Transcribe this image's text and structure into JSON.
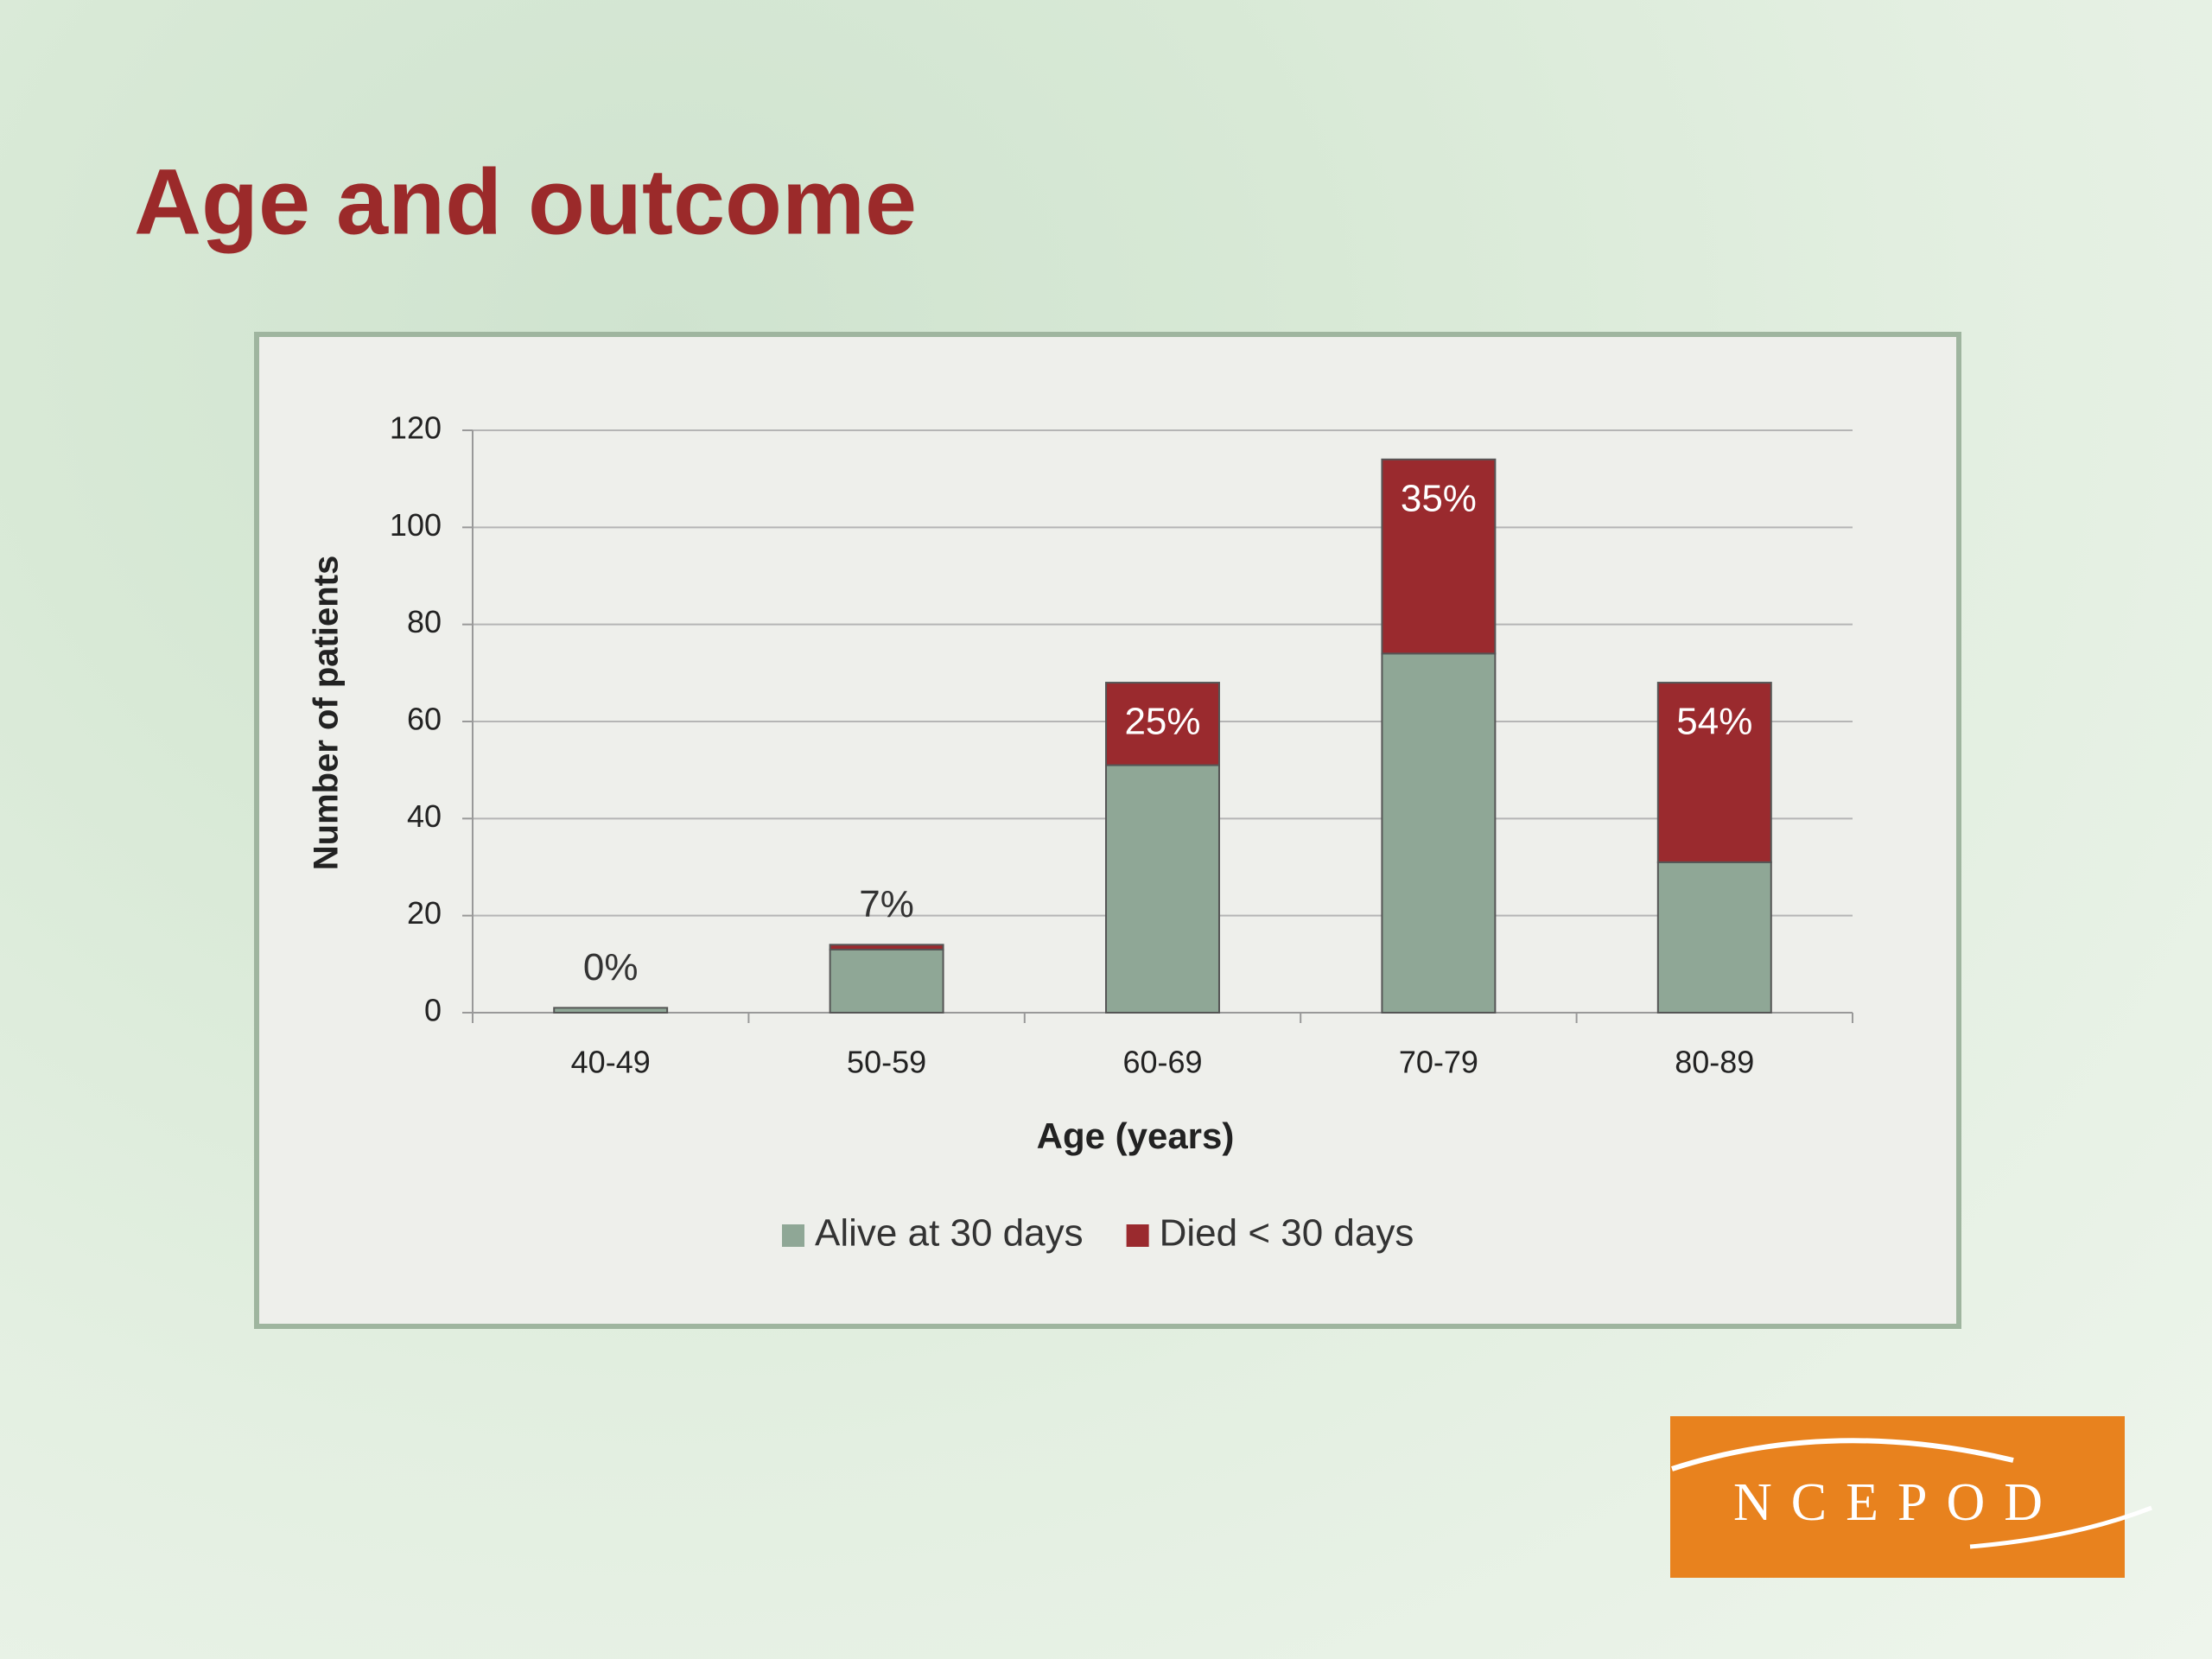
{
  "logo": "NCEPOD",
  "chart_data": {
    "type": "stacked_bar",
    "title": "Age and outcome",
    "y_label": "Number of patients",
    "x_label": "Age (years)",
    "categories": [
      "40-49",
      "50-59",
      "60-69",
      "70-79",
      "80-89"
    ],
    "series": [
      {
        "name": "Alive at 30 days",
        "color": "#8fa796",
        "values": [
          1,
          13,
          51,
          74,
          31
        ]
      },
      {
        "name": "Died < 30 days",
        "color": "#9a2a2e",
        "values": [
          0,
          1,
          17,
          40,
          37
        ]
      }
    ],
    "annotations": [
      "0%",
      "7%",
      "25%",
      "35%",
      "54%"
    ],
    "ylim": [
      0,
      120
    ],
    "yticks": [
      0,
      20,
      40,
      60,
      80,
      100,
      120
    ],
    "grid": true,
    "legend": "bottom"
  }
}
